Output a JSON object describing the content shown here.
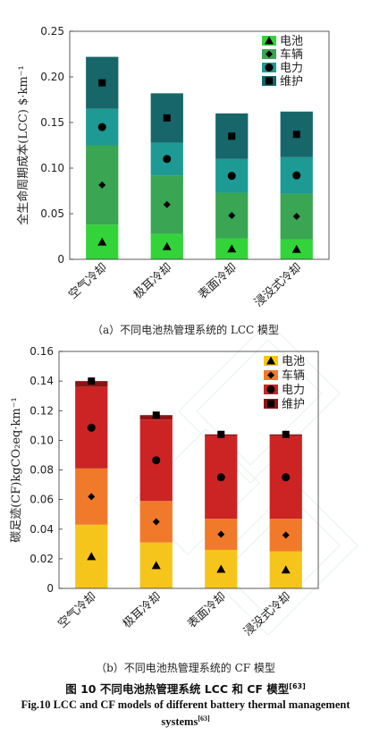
{
  "chart_data": [
    {
      "type": "bar",
      "stacked": true,
      "subcaption": "（a）不同电池热管理系统的 LCC 模型",
      "ylabel": "全生命周期成本(LCC) $·km⁻¹",
      "ylim": [
        0,
        0.25
      ],
      "yticks": [
        "0",
        "0.05",
        "0.10",
        "0.15",
        "0.20",
        "0.25"
      ],
      "ytick_values": [
        0,
        0.05,
        0.1,
        0.15,
        0.2,
        0.25
      ],
      "categories": [
        "空气冷却",
        "极耳冷却",
        "表面冷却",
        "浸没式冷却"
      ],
      "legend_position": "top-right",
      "grid": false,
      "series": [
        {
          "name": "电池",
          "values": [
            0.038,
            0.028,
            0.023,
            0.022
          ],
          "color": "#33d43a",
          "marker": "triangle"
        },
        {
          "name": "车辆",
          "values": [
            0.087,
            0.064,
            0.05,
            0.05
          ],
          "color": "#3aa552",
          "marker": "diamond"
        },
        {
          "name": "电力",
          "values": [
            0.04,
            0.036,
            0.037,
            0.04
          ],
          "color": "#1d9a94",
          "marker": "circle"
        },
        {
          "name": "维护",
          "values": [
            0.057,
            0.054,
            0.05,
            0.05
          ],
          "color": "#16666a",
          "marker": "square"
        }
      ]
    },
    {
      "type": "bar",
      "stacked": true,
      "subcaption": "（b）不同电池热管理系统的 CF 模型",
      "ylabel": "碳足迹(CF)kgCO₂eq·km⁻¹",
      "ylim": [
        0,
        0.16
      ],
      "yticks": [
        "0",
        "0.02",
        "0.04",
        "0.06",
        "0.08",
        "0.10",
        "0.12",
        "0.14",
        "0.16"
      ],
      "ytick_values": [
        0,
        0.02,
        0.04,
        0.06,
        0.08,
        0.1,
        0.12,
        0.14,
        0.16
      ],
      "categories": [
        "空气冷却",
        "极耳冷却",
        "表面冷却",
        "浸没式冷却"
      ],
      "legend_position": "top-right",
      "grid": false,
      "series": [
        {
          "name": "电池",
          "values": [
            0.043,
            0.031,
            0.026,
            0.025
          ],
          "color": "#f6c51c",
          "marker": "triangle"
        },
        {
          "name": "车辆",
          "values": [
            0.038,
            0.028,
            0.021,
            0.022
          ],
          "color": "#f07a2a",
          "marker": "diamond"
        },
        {
          "name": "电力",
          "values": [
            0.055,
            0.055,
            0.056,
            0.056
          ],
          "color": "#cc2424",
          "marker": "circle"
        },
        {
          "name": "维护",
          "values": [
            0.004,
            0.003,
            0.001,
            0.001
          ],
          "color": "#8e1414",
          "marker": "square"
        }
      ]
    }
  ],
  "caption": {
    "cn_main": "图 10 不同电池热管理系统 LCC 和 CF 模型",
    "cn_ref": "[63]",
    "en_main": "Fig.10 LCC and CF models of different battery thermal management systems",
    "en_ref": "[63]"
  }
}
